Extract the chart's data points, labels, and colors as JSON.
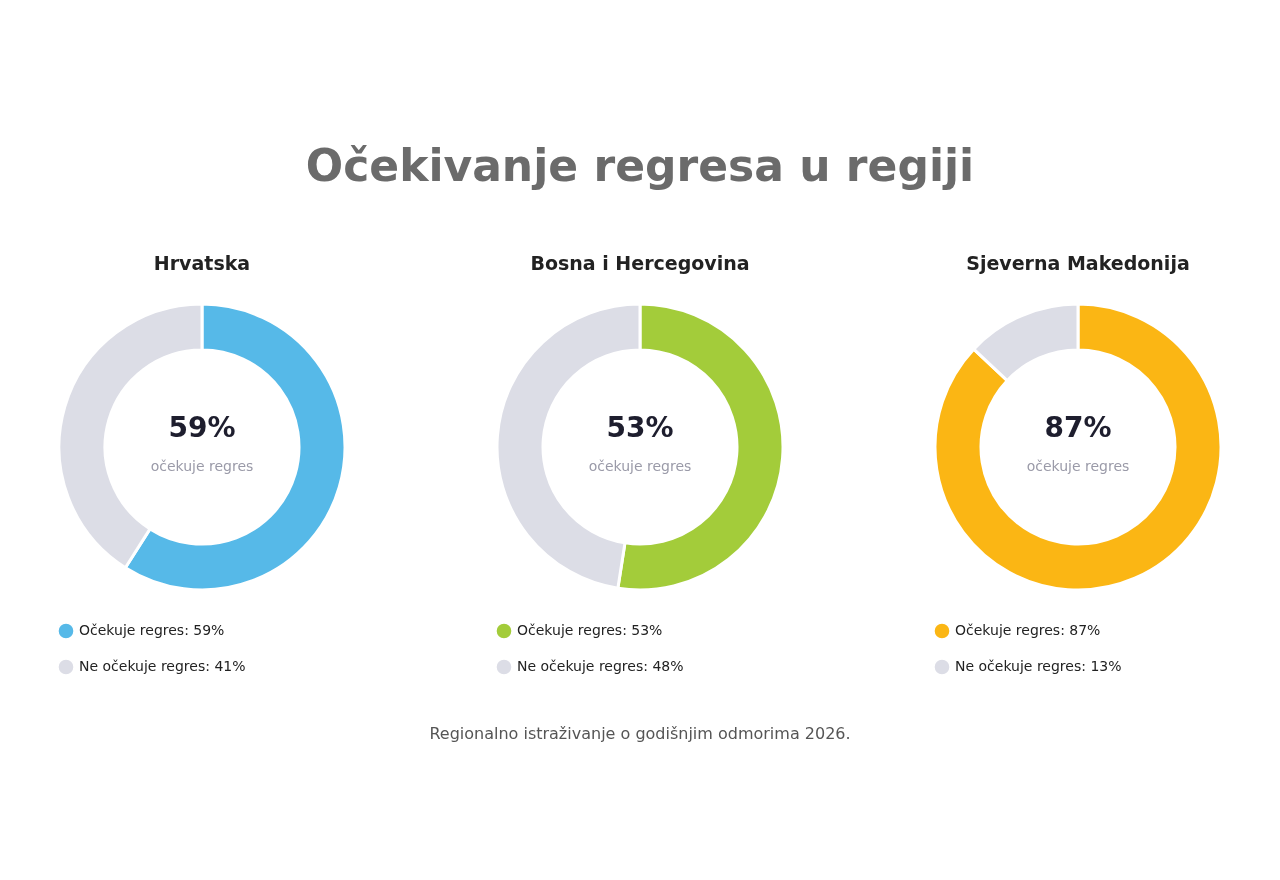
{
  "chart_data": [
    {
      "type": "other",
      "title": "Očekivanje regresa u regiji",
      "annotations": [
        "Regionalno istraživanje o godišnjim odmorima 2026."
      ]
    },
    {
      "type": "donut",
      "title": "Hrvatska",
      "categories": [
        "Očekuje regres",
        "Ne očekuje regres"
      ],
      "values": [
        59,
        41
      ],
      "colors": [
        "#56b9e8",
        "#dcdde6"
      ],
      "value_labels": [
        "59%",
        "41%"
      ],
      "annotations": [
        "očekuje regres"
      ],
      "legend": "bottom"
    },
    {
      "type": "donut",
      "title": "Bosna i Hercegovina",
      "categories": [
        "Očekuje regres",
        "Ne očekuje regres"
      ],
      "values": [
        53,
        48
      ],
      "colors": [
        "#a3cc3a",
        "#dcdde6"
      ],
      "value_labels": [
        "53%",
        "48%"
      ],
      "annotations": [
        "očekuje regres"
      ],
      "legend": "bottom"
    },
    {
      "type": "donut",
      "title": "Sjeverna Makedonija",
      "categories": [
        "Očekuje regres",
        "Ne očekuje regres"
      ],
      "values": [
        87,
        13
      ],
      "colors": [
        "#fbb614",
        "#dcdde6"
      ],
      "value_labels": [
        "87%",
        "13%"
      ],
      "annotations": [
        "očekuje regres"
      ],
      "legend": "bottom"
    }
  ]
}
